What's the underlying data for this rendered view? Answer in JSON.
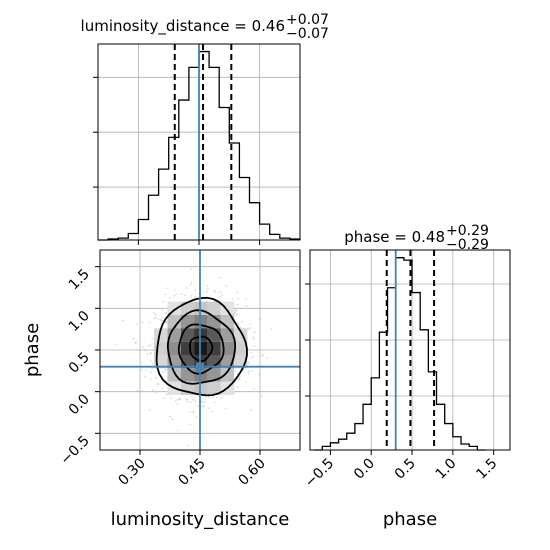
{
  "chart_data": {
    "type": "corner",
    "truth_color": "#4682b4",
    "parameters": [
      {
        "name": "luminosity_distance",
        "title_prefix": "luminosity_distance = 0.46",
        "median": 0.46,
        "err_plus": "+0.07",
        "err_minus": "−0.07",
        "quantiles": [
          0.39,
          0.46,
          0.53
        ],
        "truth": 0.45,
        "range": [
          0.2,
          0.7
        ],
        "ticks": [
          0.3,
          0.45,
          0.6
        ],
        "tick_labels": [
          "0.30",
          "0.45",
          "0.60"
        ],
        "hist": {
          "type": "step",
          "edges": [
            0.2,
            0.225,
            0.25,
            0.275,
            0.3,
            0.325,
            0.35,
            0.375,
            0.4,
            0.425,
            0.45,
            0.475,
            0.5,
            0.525,
            0.55,
            0.575,
            0.6,
            0.625,
            0.65,
            0.675,
            0.7
          ],
          "values": [
            0,
            1,
            2,
            7,
            22,
            48,
            76,
            110,
            150,
            185,
            202,
            185,
            142,
            104,
            67,
            40,
            17,
            6,
            2,
            1
          ]
        }
      },
      {
        "name": "phase",
        "title_prefix": "phase = 0.48",
        "median": 0.48,
        "err_plus": "+0.29",
        "err_minus": "−0.29",
        "quantiles": [
          0.19,
          0.48,
          0.77
        ],
        "truth": 0.3,
        "range": [
          -0.75,
          1.7
        ],
        "ticks": [
          -0.5,
          0.0,
          0.5,
          1.0,
          1.5
        ],
        "tick_labels": [
          "−0.5",
          "0.0",
          "0.5",
          "1.0",
          "1.5"
        ],
        "hist": {
          "type": "step",
          "edges": [
            -0.7,
            -0.6,
            -0.5,
            -0.4,
            -0.3,
            -0.2,
            -0.1,
            0.0,
            0.1,
            0.2,
            0.3,
            0.4,
            0.5,
            0.6,
            0.7,
            0.8,
            0.9,
            1.0,
            1.1,
            1.2,
            1.3,
            1.4
          ],
          "values": [
            0,
            3,
            6,
            9,
            14,
            22,
            38,
            60,
            98,
            135,
            160,
            158,
            131,
            100,
            65,
            38,
            22,
            11,
            5,
            3,
            0
          ]
        }
      }
    ],
    "joint": {
      "x": "luminosity_distance",
      "y": "phase",
      "xlim": [
        0.2,
        0.7
      ],
      "ylim": [
        -0.7,
        1.7
      ],
      "density_peak": [
        0.452,
        0.52
      ],
      "density_sigma": [
        0.056,
        0.29
      ],
      "contour_levels": [
        "0.5σ",
        "1σ",
        "1.5σ",
        "2σ"
      ],
      "scatter": "grey points",
      "density": "grey 2D histogram"
    }
  }
}
